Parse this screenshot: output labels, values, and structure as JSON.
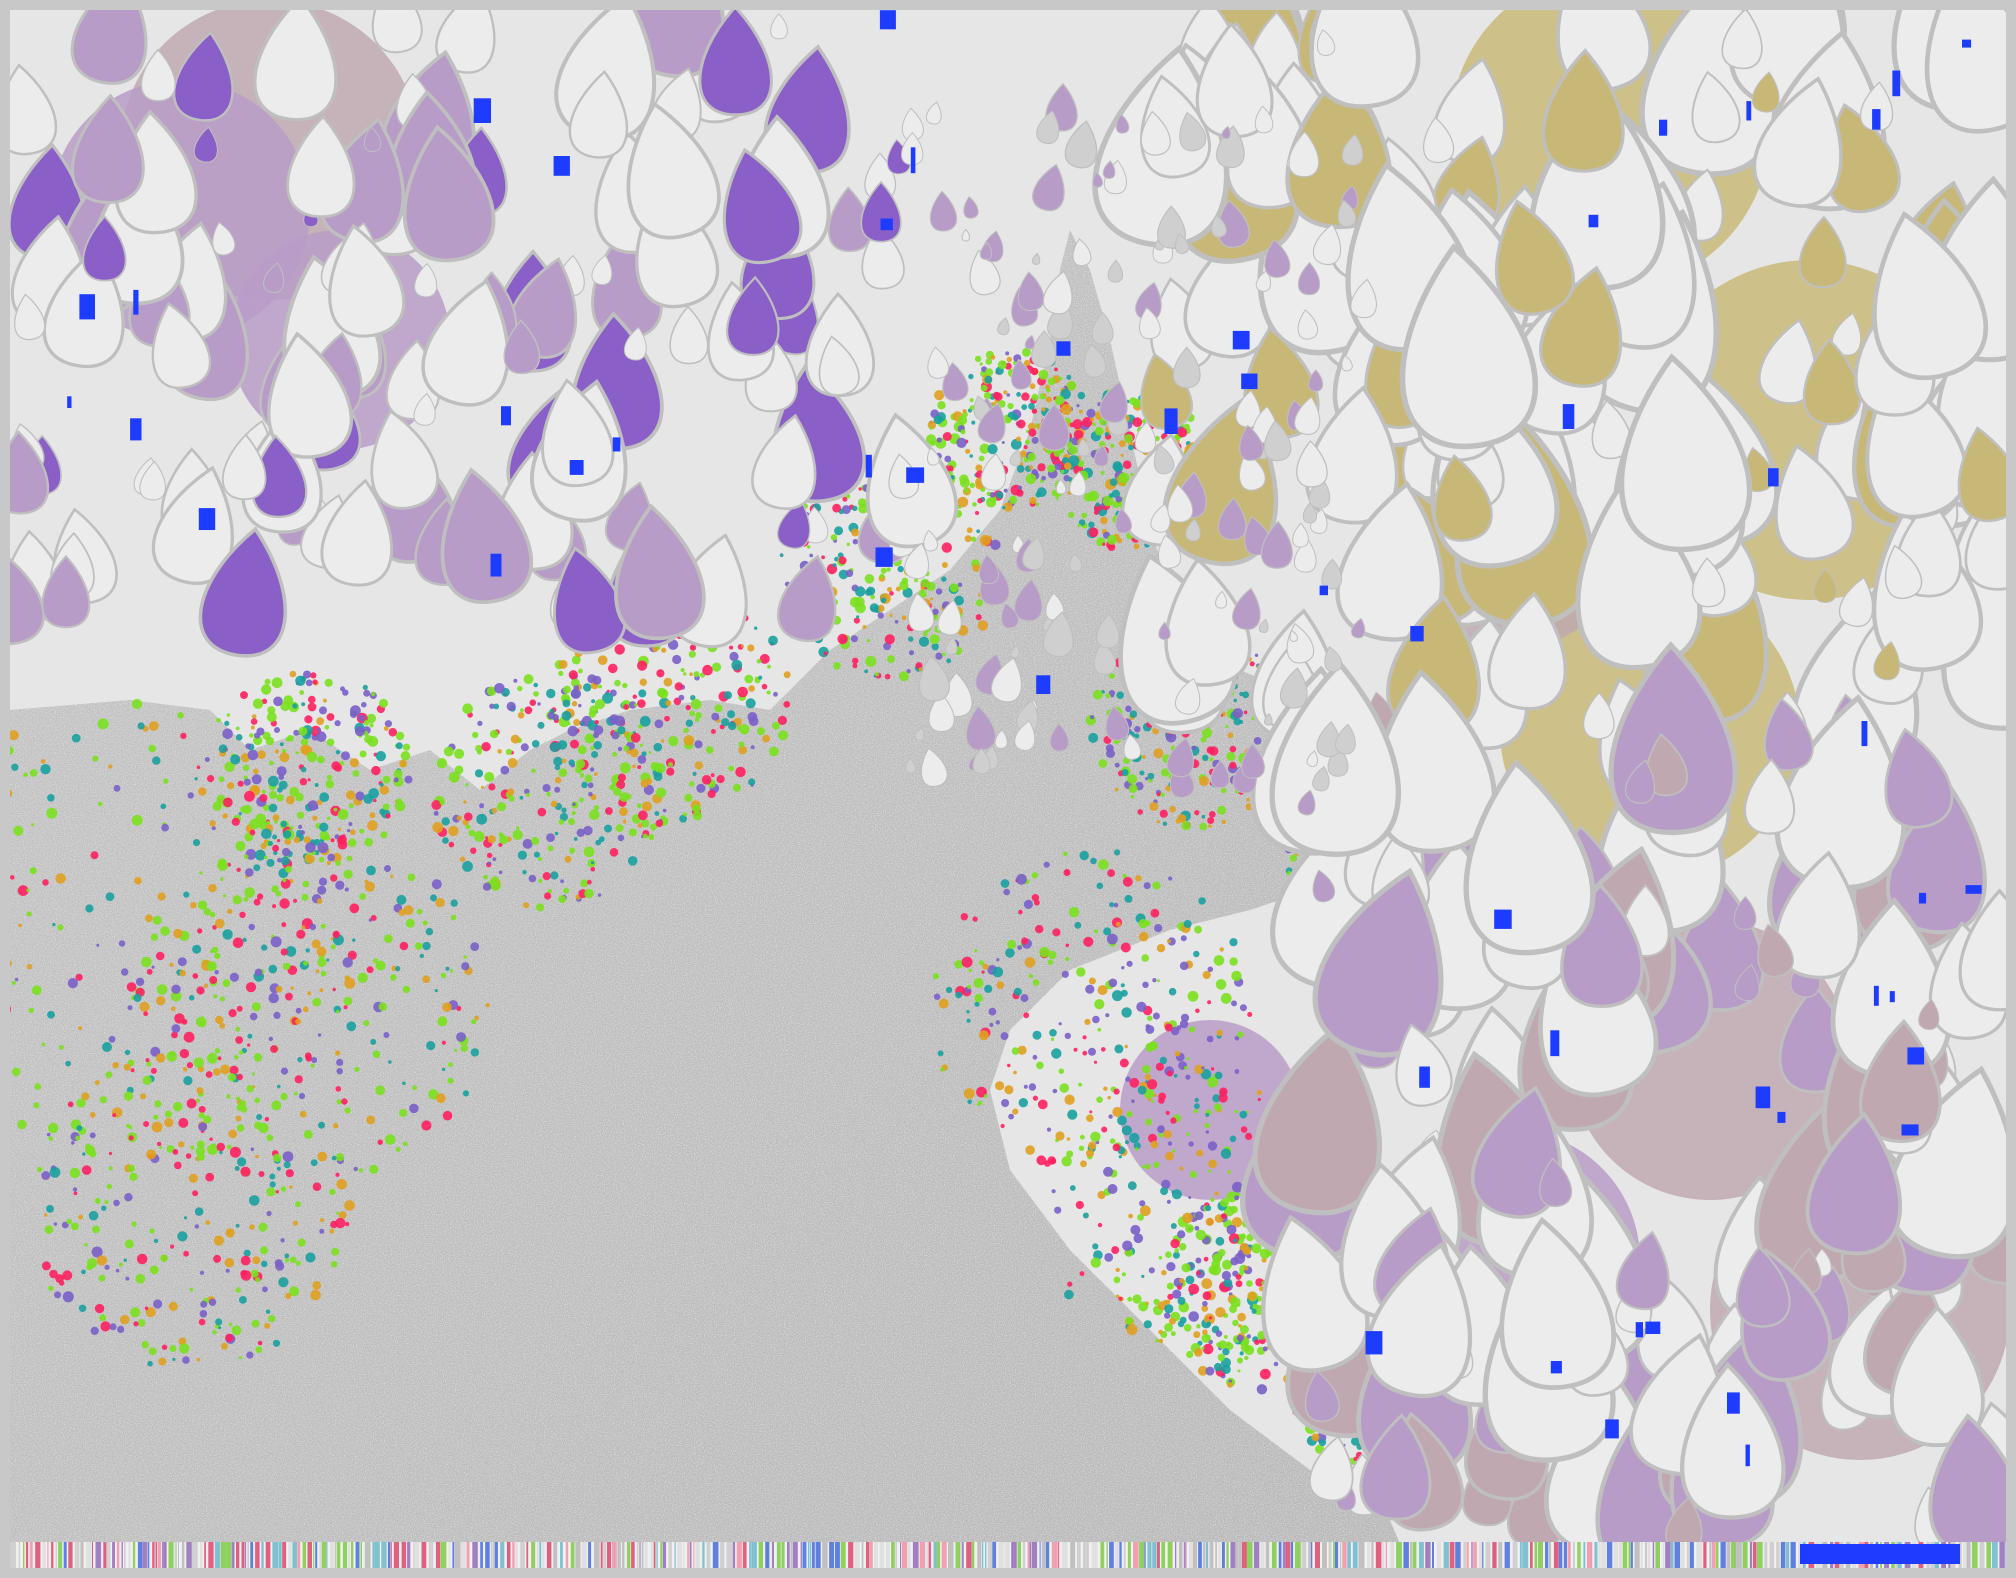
{
  "image": {
    "palette": {
      "background": "#e6e6e6",
      "frame_border": "#c8c8c8",
      "set_interior": "#bdbdbd",
      "petal_light": "#ececec",
      "petal_shadow": "#cfcfcf",
      "petal_lavender": "#b89cc8",
      "petal_violet": "#8a5fc8",
      "petal_khaki": "#c8b878",
      "petal_mauve": "#c0a8b0",
      "accent_blue": "#1e3cff",
      "boundary_purple": "#7a60c8",
      "boundary_teal": "#1aa0a0",
      "boundary_green": "#7ae01e",
      "boundary_orange": "#e0a020",
      "boundary_red": "#ff2060"
    }
  }
}
